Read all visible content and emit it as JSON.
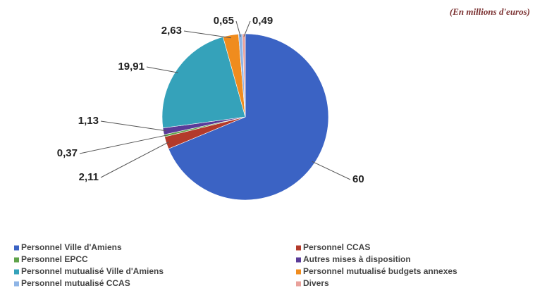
{
  "chart_data": {
    "type": "pie",
    "subtitle": "(En millions d'euros)",
    "categories": [
      "Personnel Ville d'Amiens",
      "Personnel CCAS",
      "Personnel EPCC",
      "Autres mises à disposition",
      "Personnel mutualisé Ville d'Amiens",
      "Personnel mutualisé budgets annexes",
      "Personnel mutualisé CCAS",
      "Divers"
    ],
    "values": [
      60,
      2.11,
      0.37,
      1.13,
      19.91,
      2.63,
      0.65,
      0.49
    ],
    "value_labels": [
      "60",
      "2,11",
      "0,37",
      "1,13",
      "19,91",
      "2,63",
      "0,65",
      "0,49"
    ],
    "colors": [
      "#3b63c4",
      "#b33a2b",
      "#5fa34a",
      "#5a3b98",
      "#35a2ba",
      "#f08c1e",
      "#8fb5e6",
      "#e9a19b"
    ]
  }
}
